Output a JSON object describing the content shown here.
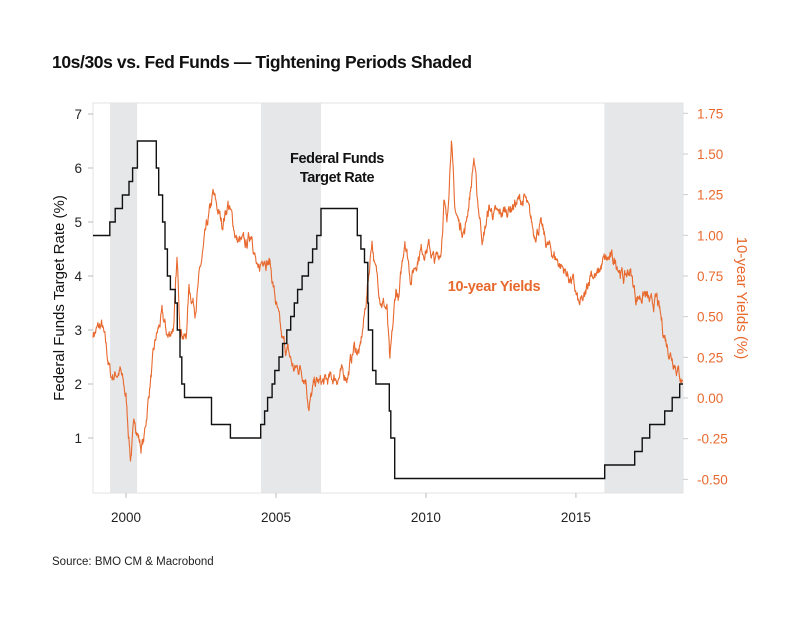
{
  "chart_data": {
    "type": "line",
    "title": "10s/30s vs. Fed Funds — Tightening Periods Shaded",
    "source": "Source: BMO CM & Macrobond",
    "xlabel": "",
    "ylabel_left": "Federal Funds Target Rate (%)",
    "ylabel_right": "10-year Yields (%)",
    "xlim": [
      1998.9,
      2018.57
    ],
    "ylim_left": [
      0,
      7.2
    ],
    "ylim_right": [
      -0.58,
      1.8
    ],
    "x_ticks": [
      "2000",
      "2005",
      "2010",
      "2015"
    ],
    "x_tick_values": [
      2000,
      2005,
      2010,
      2015
    ],
    "y_left_ticks": [
      "1",
      "2",
      "3",
      "4",
      "5",
      "6",
      "7"
    ],
    "y_left_tick_values": [
      1,
      2,
      3,
      4,
      5,
      6,
      7
    ],
    "y_right_ticks": [
      "-0.50",
      "-0.25",
      "0.00",
      "0.25",
      "0.50",
      "0.75",
      "1.00",
      "1.25",
      "1.50",
      "1.75"
    ],
    "y_right_tick_values": [
      -0.5,
      -0.25,
      0,
      0.25,
      0.5,
      0.75,
      1.0,
      1.25,
      1.5,
      1.75
    ],
    "grid": false,
    "colors": {
      "fed": "#111111",
      "yield": "#E8692E",
      "shade": "#E6E7E8"
    },
    "shaded_periods": [
      [
        1999.47,
        2000.37
      ],
      [
        2004.5,
        2006.5
      ],
      [
        2015.95,
        2018.57
      ]
    ],
    "annotations": {
      "fed_line1": "Federal Funds",
      "fed_line2": "Target Rate",
      "yield": "10-year Yields"
    },
    "series": [
      {
        "name": "Federal Funds Target Rate",
        "axis": "left",
        "step": true,
        "x": [
          1998.9,
          1999.46,
          1999.64,
          1999.88,
          2000.1,
          2000.22,
          2000.38,
          2001.01,
          2001.09,
          2001.22,
          2001.3,
          2001.38,
          2001.48,
          2001.64,
          2001.71,
          2001.8,
          2001.86,
          2001.95,
          2002.85,
          2003.48,
          2004.49,
          2004.62,
          2004.72,
          2004.87,
          2004.96,
          2005.1,
          2005.22,
          2005.36,
          2005.49,
          2005.61,
          2005.72,
          2005.87,
          2006.08,
          2006.22,
          2006.36,
          2006.5,
          2007.71,
          2007.83,
          2007.95,
          2008.06,
          2008.08,
          2008.22,
          2008.33,
          2008.78,
          2008.83,
          2008.96,
          2015.96,
          2016.96,
          2017.21,
          2017.46,
          2017.96,
          2018.21,
          2018.46,
          2018.57
        ],
        "values": [
          4.75,
          5.0,
          5.25,
          5.5,
          5.75,
          6.0,
          6.5,
          6.0,
          5.5,
          5.0,
          4.5,
          4.0,
          3.75,
          3.5,
          3.0,
          2.5,
          2.0,
          1.75,
          1.25,
          1.0,
          1.25,
          1.5,
          1.75,
          2.0,
          2.25,
          2.5,
          2.75,
          3.0,
          3.25,
          3.5,
          3.75,
          4.0,
          4.25,
          4.5,
          4.75,
          5.25,
          4.75,
          4.5,
          4.25,
          3.5,
          3.0,
          2.25,
          2.0,
          1.5,
          1.0,
          0.25,
          0.5,
          0.75,
          1.0,
          1.25,
          1.5,
          1.75,
          2.0,
          2.0
        ]
      },
      {
        "name": "10-year Yields",
        "axis": "right",
        "x": [
          1998.9,
          1999.2,
          1999.5,
          1999.8,
          2000.0,
          2000.15,
          2000.3,
          2000.5,
          2000.6,
          2000.8,
          2001.0,
          2001.2,
          2001.4,
          2001.6,
          2001.7,
          2001.8,
          2002.0,
          2002.1,
          2002.3,
          2002.6,
          2002.9,
          2003.2,
          2003.4,
          2003.7,
          2004.0,
          2004.2,
          2004.4,
          2004.6,
          2004.8,
          2005.0,
          2005.2,
          2005.4,
          2005.6,
          2005.8,
          2006.0,
          2006.1,
          2006.3,
          2006.6,
          2007.0,
          2007.4,
          2007.6,
          2007.8,
          2007.95,
          2008.1,
          2008.2,
          2008.3,
          2008.5,
          2008.7,
          2008.8,
          2009.0,
          2009.1,
          2009.3,
          2009.5,
          2009.8,
          2010.1,
          2010.3,
          2010.5,
          2010.6,
          2010.7,
          2010.85,
          2010.95,
          2011.1,
          2011.3,
          2011.5,
          2011.6,
          2011.7,
          2011.9,
          2012.1,
          2012.4,
          2012.7,
          2013.0,
          2013.3,
          2013.6,
          2013.8,
          2014.0,
          2014.3,
          2014.6,
          2014.9,
          2015.1,
          2015.3,
          2015.5,
          2015.7,
          2015.9,
          2016.1,
          2016.4,
          2016.6,
          2016.8,
          2017.0,
          2017.3,
          2017.5,
          2017.7,
          2017.9,
          2018.1,
          2018.3,
          2018.5,
          2018.57
        ],
        "values": [
          0.4,
          0.44,
          0.13,
          0.17,
          0.0,
          -0.36,
          -0.14,
          -0.3,
          -0.26,
          0.09,
          0.36,
          0.5,
          0.37,
          0.46,
          0.83,
          0.46,
          0.36,
          0.68,
          0.56,
          0.93,
          1.24,
          1.07,
          1.2,
          0.97,
          0.93,
          1.03,
          0.74,
          0.89,
          0.83,
          0.58,
          0.34,
          0.28,
          0.17,
          0.19,
          0.13,
          -0.05,
          0.09,
          0.09,
          0.13,
          0.15,
          0.31,
          0.28,
          0.5,
          0.77,
          0.99,
          0.8,
          0.62,
          0.54,
          0.19,
          0.66,
          0.6,
          1.0,
          0.74,
          0.91,
          0.93,
          0.83,
          0.91,
          1.22,
          1.05,
          1.63,
          1.17,
          1.07,
          1.03,
          1.3,
          1.48,
          1.24,
          0.97,
          1.16,
          1.11,
          1.16,
          1.2,
          1.22,
          1.01,
          1.07,
          0.95,
          0.87,
          0.79,
          0.71,
          0.56,
          0.6,
          0.79,
          0.74,
          0.83,
          0.85,
          0.83,
          0.73,
          0.79,
          0.62,
          0.64,
          0.56,
          0.6,
          0.42,
          0.3,
          0.23,
          0.13,
          0.11
        ]
      }
    ]
  }
}
